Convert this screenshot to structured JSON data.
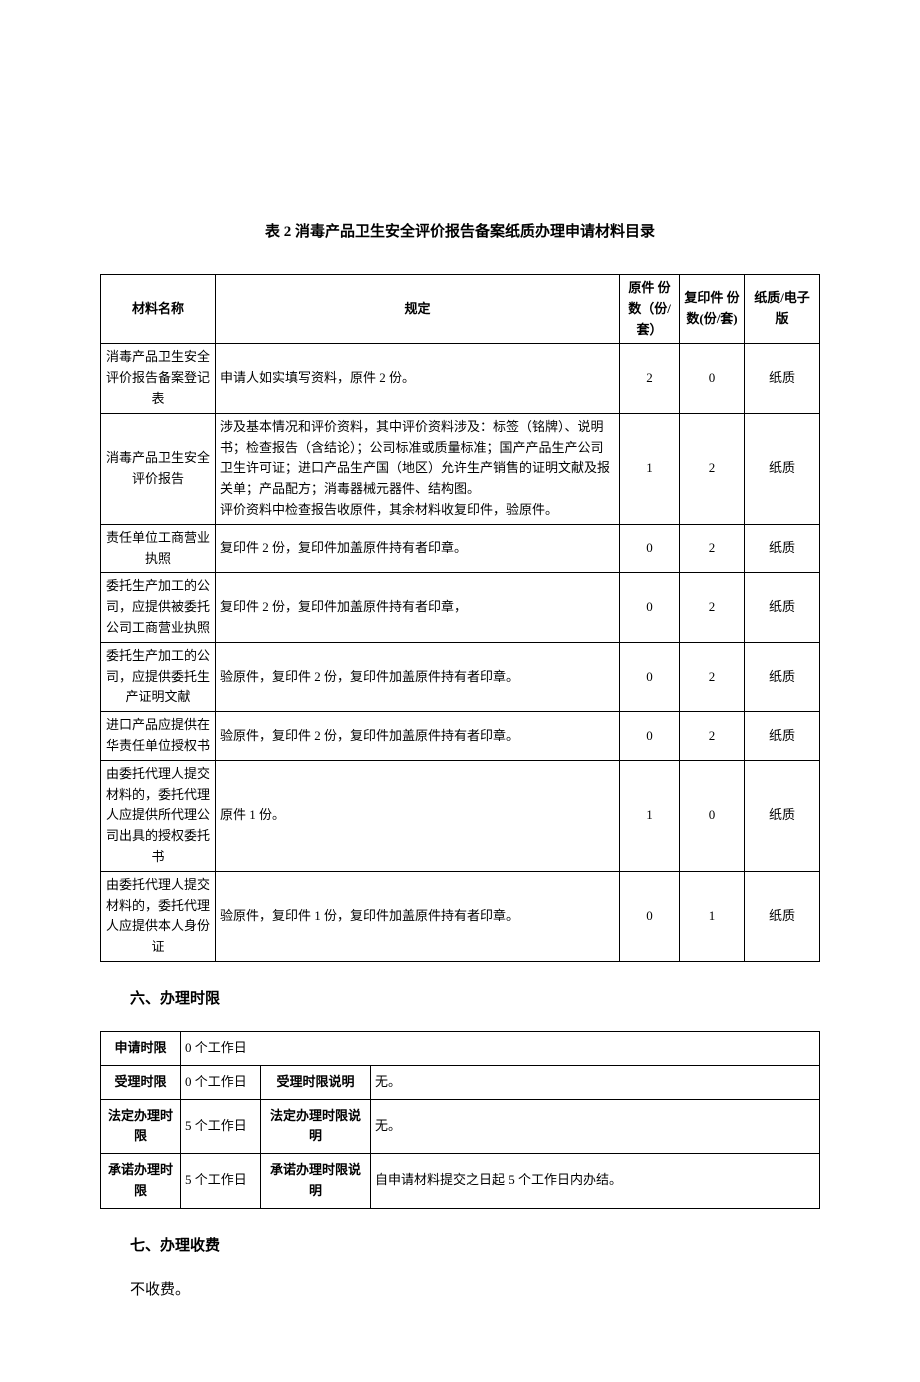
{
  "table2": {
    "title": "表 2  消毒产品卫生安全评价报告备案纸质办理申请材料目录",
    "headers": {
      "name": "材料名称",
      "req": "规定",
      "orig": "原件\n份数（份/套）",
      "copy": "复印件\n份数(份/套)",
      "fmt": "纸质/电子版"
    },
    "rows": [
      {
        "name": "消毒产品卫生安全评价报告备案登记表",
        "req": "申请人如实填写资料，原件 2 份。",
        "orig": "2",
        "copy": "0",
        "fmt": "纸质"
      },
      {
        "name": "消毒产品卫生安全评价报告",
        "req": "涉及基本情况和评价资料，其中评价资料涉及：标签（铭牌）、说明书；检查报告（含结论）；公司标准或质量标准；国产产品生产公司卫生许可证；进口产品生产国（地区）允许生产销售的证明文献及报关单；产品配方；消毒器械元器件、结构图。\n评价资料中检查报告收原件，其余材料收复印件，验原件。",
        "orig": "1",
        "copy": "2",
        "fmt": "纸质"
      },
      {
        "name": "责任单位工商营业执照",
        "req": "复印件 2 份，复印件加盖原件持有者印章。",
        "orig": "0",
        "copy": "2",
        "fmt": "纸质"
      },
      {
        "name": "委托生产加工的公司，应提供被委托公司工商营业执照",
        "req": "复印件 2 份，复印件加盖原件持有者印章，",
        "orig": "0",
        "copy": "2",
        "fmt": "纸质"
      },
      {
        "name": "委托生产加工的公司，应提供委托生产证明文献",
        "req": "验原件，复印件 2 份，复印件加盖原件持有者印章。",
        "orig": "0",
        "copy": "2",
        "fmt": "纸质"
      },
      {
        "name": "进口产品应提供在华责任单位授权书",
        "req": "验原件，复印件 2 份，复印件加盖原件持有者印章。",
        "orig": "0",
        "copy": "2",
        "fmt": "纸质"
      },
      {
        "name": "由委托代理人提交材料的，委托代理人应提供所代理公司出具的授权委托书",
        "req": "原件 1 份。",
        "orig": "1",
        "copy": "0",
        "fmt": "纸质"
      },
      {
        "name": "由委托代理人提交材料的，委托代理人应提供本人身份证",
        "req": "验原件，复印件 1 份，复印件加盖原件持有者印章。",
        "orig": "0",
        "copy": "1",
        "fmt": "纸质"
      }
    ]
  },
  "section6": {
    "heading": "六、办理时限",
    "rows": {
      "apply_label": "申请时限",
      "apply_val": "0 个工作日",
      "accept_label": "受理时限",
      "accept_val": "0 个工作日",
      "accept_desc_label": "受理时限说明",
      "accept_desc": "无。",
      "legal_label": "法定办理时限",
      "legal_val": "5 个工作日",
      "legal_desc_label": "法定办理时限说明",
      "legal_desc": "无。",
      "promise_label": "承诺办理时限",
      "promise_val": "5 个工作日",
      "promise_desc_label": "承诺办理时限说明",
      "promise_desc": "自申请材料提交之日起 5 个工作日内办结。"
    }
  },
  "section7": {
    "heading": "七、办理收费",
    "body": "不收费。"
  }
}
